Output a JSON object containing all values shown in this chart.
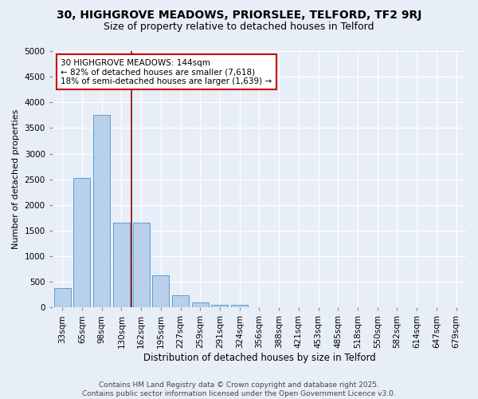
{
  "title1": "30, HIGHGROVE MEADOWS, PRIORSLEE, TELFORD, TF2 9RJ",
  "title2": "Size of property relative to detached houses in Telford",
  "xlabel": "Distribution of detached houses by size in Telford",
  "ylabel": "Number of detached properties",
  "categories": [
    "33sqm",
    "65sqm",
    "98sqm",
    "130sqm",
    "162sqm",
    "195sqm",
    "227sqm",
    "259sqm",
    "291sqm",
    "324sqm",
    "356sqm",
    "388sqm",
    "421sqm",
    "453sqm",
    "485sqm",
    "518sqm",
    "550sqm",
    "582sqm",
    "614sqm",
    "647sqm",
    "679sqm"
  ],
  "values": [
    380,
    2530,
    3760,
    1650,
    1650,
    620,
    235,
    105,
    45,
    45,
    0,
    0,
    0,
    0,
    0,
    0,
    0,
    0,
    0,
    0,
    0
  ],
  "bar_color": "#b8d0ea",
  "bar_edge_color": "#5b9bd5",
  "vline_x": 3.5,
  "vline_color": "#8b0000",
  "annotation_text": "30 HIGHGROVE MEADOWS: 144sqm\n← 82% of detached houses are smaller (7,618)\n18% of semi-detached houses are larger (1,639) →",
  "annotation_box_color": "#ffffff",
  "annotation_box_edge": "#cc0000",
  "ylim": [
    0,
    5000
  ],
  "yticks": [
    0,
    500,
    1000,
    1500,
    2000,
    2500,
    3000,
    3500,
    4000,
    4500,
    5000
  ],
  "background_color": "#e8eef8",
  "plot_bg_color": "#e8eef8",
  "footer_text": "Contains HM Land Registry data © Crown copyright and database right 2025.\nContains public sector information licensed under the Open Government Licence v3.0.",
  "title1_fontsize": 10,
  "title2_fontsize": 9,
  "xlabel_fontsize": 8.5,
  "ylabel_fontsize": 8,
  "tick_fontsize": 7.5,
  "annotation_fontsize": 7.5,
  "footer_fontsize": 6.5
}
